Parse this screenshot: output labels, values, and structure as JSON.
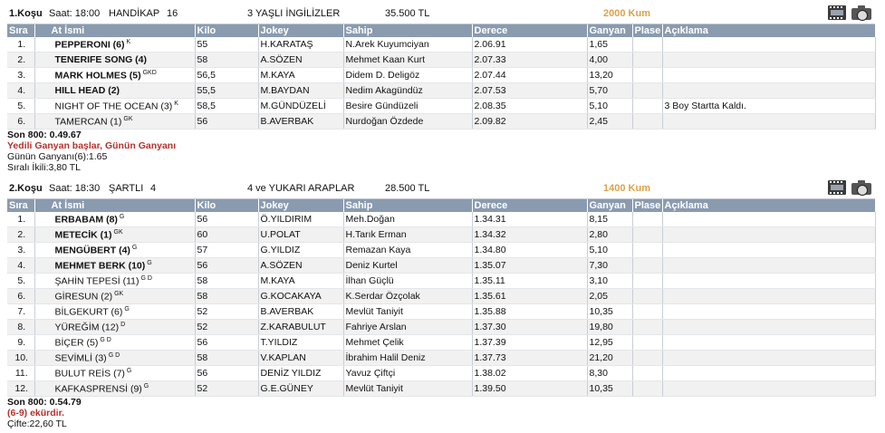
{
  "columns": [
    "Sıra",
    "At İsmi",
    "Kilo",
    "Jokey",
    "Sahip",
    "Derece",
    "Ganyan",
    "Plase",
    "Açıklama"
  ],
  "races": [
    {
      "title": "1.Koşu",
      "time": "Saat: 18:00",
      "type": "HANDİKAP",
      "type_no": "16",
      "category": "3 YAŞLI İNGİLİZLER",
      "prize": "35.500 TL",
      "distance": "2000 Kum",
      "rows": [
        {
          "sira": "1.",
          "name": "PEPPERONI (6)",
          "sup": "K",
          "bold": true,
          "kilo": "55",
          "jokey": "H.KARATAŞ",
          "sahip": "N.Arek Kuyumciyan",
          "derece": "2.06.91",
          "ganyan": "1,65",
          "plase": "",
          "aciklama": ""
        },
        {
          "sira": "2.",
          "name": "TENERIFE SONG (4)",
          "sup": "",
          "bold": true,
          "kilo": "58",
          "jokey": "A.SÖZEN",
          "sahip": "Mehmet Kaan Kurt",
          "derece": "2.07.33",
          "ganyan": "4,00",
          "plase": "",
          "aciklama": ""
        },
        {
          "sira": "3.",
          "name": "MARK HOLMES (5)",
          "sup": "GKD",
          "bold": true,
          "kilo": "56,5",
          "jokey": "M.KAYA",
          "sahip": "Didem D. Deligöz",
          "derece": "2.07.44",
          "ganyan": "13,20",
          "plase": "",
          "aciklama": ""
        },
        {
          "sira": "4.",
          "name": "HILL HEAD (2)",
          "sup": "",
          "bold": true,
          "kilo": "55,5",
          "jokey": "M.BAYDAN",
          "sahip": "Nedim Akagündüz",
          "derece": "2.07.53",
          "ganyan": "5,70",
          "plase": "",
          "aciklama": ""
        },
        {
          "sira": "5.",
          "name": "NIGHT OF THE OCEAN (3)",
          "sup": "K",
          "bold": false,
          "kilo": "58,5",
          "jokey": "M.GÜNDÜZELİ",
          "sahip": "Besire Gündüzeli",
          "derece": "2.08.35",
          "ganyan": "5,10",
          "plase": "",
          "aciklama": "3 Boy Startta Kaldı."
        },
        {
          "sira": "6.",
          "name": "TAMERCAN (1)",
          "sup": "GK",
          "bold": false,
          "kilo": "56",
          "jokey": "B.AVERBAK",
          "sahip": "Nurdoğan Özdede",
          "derece": "2.09.82",
          "ganyan": "2,45",
          "plase": "",
          "aciklama": ""
        }
      ],
      "son800": "Son 800: 0.49.67",
      "note_red": "Yedili Ganyan başlar, Günün Ganyanı",
      "line1": "Günün Ganyanı(6):1.65",
      "line2": "Sıralı İkili:3,80 TL"
    },
    {
      "title": "2.Koşu",
      "time": "Saat: 18:30",
      "type": "ŞARTLI",
      "type_no": "4",
      "category": "4 ve YUKARI ARAPLAR",
      "prize": "28.500 TL",
      "distance": "1400 Kum",
      "rows": [
        {
          "sira": "1.",
          "name": "ERBABAM (8)",
          "sup": "G",
          "bold": true,
          "kilo": "56",
          "jokey": "Ö.YILDIRIM",
          "sahip": "Meh.Doğan",
          "derece": "1.34.31",
          "ganyan": "8,15",
          "plase": "",
          "aciklama": ""
        },
        {
          "sira": "2.",
          "name": "METECİK (1)",
          "sup": "GK",
          "bold": true,
          "kilo": "60",
          "jokey": "U.POLAT",
          "sahip": "H.Tarık Erman",
          "derece": "1.34.32",
          "ganyan": "2,80",
          "plase": "",
          "aciklama": ""
        },
        {
          "sira": "3.",
          "name": "MENGÜBERT (4)",
          "sup": "G",
          "bold": true,
          "kilo": "57",
          "jokey": "G.YILDIZ",
          "sahip": "Remazan Kaya",
          "derece": "1.34.80",
          "ganyan": "5,10",
          "plase": "",
          "aciklama": ""
        },
        {
          "sira": "4.",
          "name": "MEHMET BERK (10)",
          "sup": "G",
          "bold": true,
          "kilo": "56",
          "jokey": "A.SÖZEN",
          "sahip": "Deniz Kurtel",
          "derece": "1.35.07",
          "ganyan": "7,30",
          "plase": "",
          "aciklama": ""
        },
        {
          "sira": "5.",
          "name": "ŞAHİN TEPESİ (11)",
          "sup": "G D",
          "bold": false,
          "kilo": "58",
          "jokey": "M.KAYA",
          "sahip": "İlhan Güçlü",
          "derece": "1.35.11",
          "ganyan": "3,10",
          "plase": "",
          "aciklama": ""
        },
        {
          "sira": "6.",
          "name": "GİRESUN (2)",
          "sup": "GK",
          "bold": false,
          "kilo": "58",
          "jokey": "G.KOCAKAYA",
          "sahip": "K.Serdar Özçolak",
          "derece": "1.35.61",
          "ganyan": "2,05",
          "plase": "",
          "aciklama": ""
        },
        {
          "sira": "7.",
          "name": "BİLGEKURT (6)",
          "sup": "G",
          "bold": false,
          "kilo": "52",
          "jokey": "B.AVERBAK",
          "sahip": "Mevlüt Taniyit",
          "derece": "1.35.88",
          "ganyan": "10,35",
          "plase": "",
          "aciklama": ""
        },
        {
          "sira": "8.",
          "name": "YÜREĞİM (12)",
          "sup": "D",
          "bold": false,
          "kilo": "52",
          "jokey": "Z.KARABULUT",
          "sahip": "Fahriye Arslan",
          "derece": "1.37.30",
          "ganyan": "19,80",
          "plase": "",
          "aciklama": ""
        },
        {
          "sira": "9.",
          "name": "BİÇER (5)",
          "sup": "G D",
          "bold": false,
          "kilo": "56",
          "jokey": "T.YILDIZ",
          "sahip": "Mehmet Çelik",
          "derece": "1.37.39",
          "ganyan": "12,95",
          "plase": "",
          "aciklama": ""
        },
        {
          "sira": "10.",
          "name": "SEVİMLİ (3)",
          "sup": "G D",
          "bold": false,
          "kilo": "58",
          "jokey": "V.KAPLAN",
          "sahip": "İbrahim Halil Deniz",
          "derece": "1.37.73",
          "ganyan": "21,20",
          "plase": "",
          "aciklama": ""
        },
        {
          "sira": "11.",
          "name": "BULUT REİS (7)",
          "sup": "G",
          "bold": false,
          "kilo": "56",
          "jokey": "DENİZ YILDIZ",
          "sahip": "Yavuz Çiftçi",
          "derece": "1.38.02",
          "ganyan": "8,30",
          "plase": "",
          "aciklama": ""
        },
        {
          "sira": "12.",
          "name": "KAFKASPRENSİ (9)",
          "sup": "G",
          "bold": false,
          "kilo": "52",
          "jokey": "G.E.GÜNEY",
          "sahip": "Mevlüt Taniyit",
          "derece": "1.39.50",
          "ganyan": "10,35",
          "plase": "",
          "aciklama": ""
        }
      ],
      "son800": "Son 800: 0.54.79",
      "note_red": "(6-9) ekürdir.",
      "line1": "Çifte:22,60 TL",
      "line2": ""
    }
  ]
}
